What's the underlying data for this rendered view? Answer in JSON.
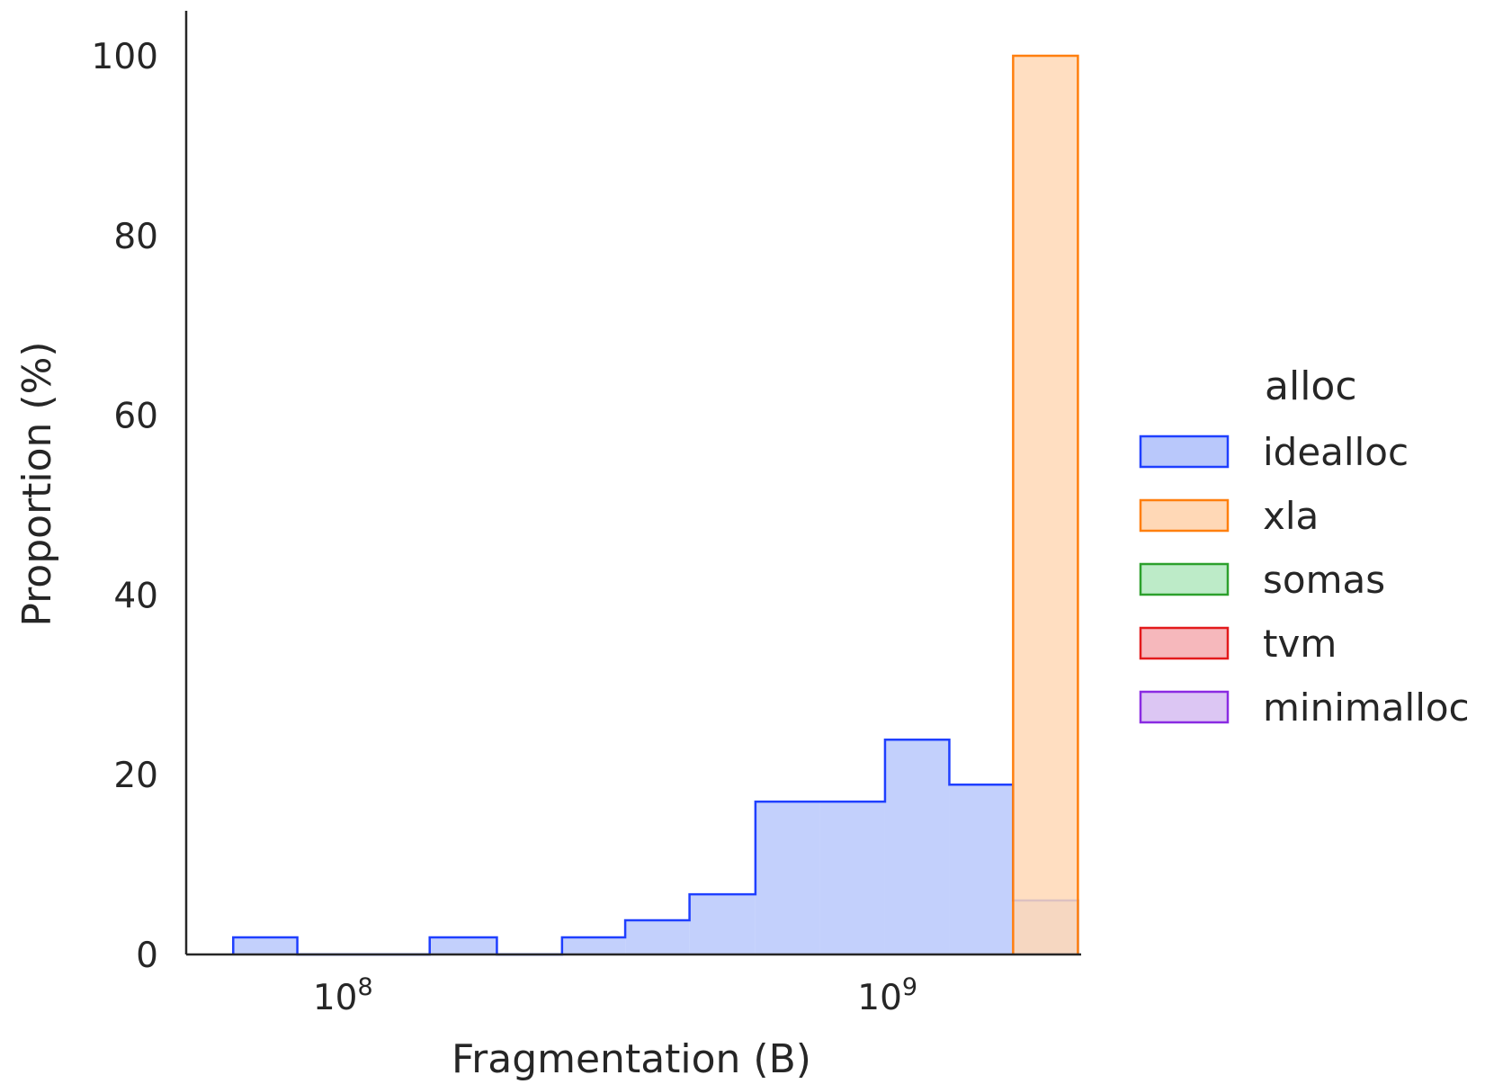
{
  "chart_data": {
    "type": "histogram",
    "xlabel": "Fragmentation (B)",
    "ylabel": "Proportion (%)",
    "x_scale": "log",
    "xlim": [
      50000000,
      2200000000
    ],
    "ylim": [
      0,
      100
    ],
    "x_ticks": [
      {
        "value": 100000000,
        "base": "10",
        "exponent": "8"
      },
      {
        "value": 1000000000,
        "base": "10",
        "exponent": "9"
      }
    ],
    "y_ticks": [
      {
        "value": 0,
        "label": "0"
      },
      {
        "value": 20,
        "label": "20"
      },
      {
        "value": 40,
        "label": "40"
      },
      {
        "value": 60,
        "label": "60"
      },
      {
        "value": 80,
        "label": "80"
      },
      {
        "value": 100,
        "label": "100"
      }
    ],
    "grid": false,
    "legend": {
      "title": "alloc",
      "placement": "right-outside",
      "entries": [
        {
          "name": "idealloc",
          "stroke": "#1f3fff",
          "fill": "#b9c8fb"
        },
        {
          "name": "xla",
          "stroke": "#ff7f0e",
          "fill": "#ffd8b6"
        },
        {
          "name": "somas",
          "stroke": "#2ca02c",
          "fill": "#bdebc8"
        },
        {
          "name": "tvm",
          "stroke": "#e31a1c",
          "fill": "#f6b8bc"
        },
        {
          "name": "minimalloc",
          "stroke": "#8a2be2",
          "fill": "#dcc6f3"
        }
      ]
    },
    "series": [
      {
        "name": "idealloc",
        "bins": [
          {
            "x0": 61000000,
            "x1": 80000000,
            "value": 1.9
          },
          {
            "x0": 80000000,
            "x1": 107000000,
            "value": 0
          },
          {
            "x0": 107000000,
            "x1": 140000000,
            "value": 0
          },
          {
            "x0": 140000000,
            "x1": 186000000,
            "value": 1.9
          },
          {
            "x0": 186000000,
            "x1": 245000000,
            "value": 0
          },
          {
            "x0": 245000000,
            "x1": 320000000,
            "value": 1.9
          },
          {
            "x0": 320000000,
            "x1": 420000000,
            "value": 3.8
          },
          {
            "x0": 420000000,
            "x1": 555000000,
            "value": 6.7
          },
          {
            "x0": 555000000,
            "x1": 730000000,
            "value": 17.0
          },
          {
            "x0": 730000000,
            "x1": 960000000,
            "value": 17.0
          },
          {
            "x0": 960000000,
            "x1": 1260000000,
            "value": 23.9
          },
          {
            "x0": 1260000000,
            "x1": 1650000000,
            "value": 18.9
          },
          {
            "x0": 1650000000,
            "x1": 2170000000,
            "value": 6.0
          }
        ]
      },
      {
        "name": "xla",
        "bins": [
          {
            "x0": 1650000000,
            "x1": 2170000000,
            "value": 100
          }
        ]
      }
    ]
  }
}
